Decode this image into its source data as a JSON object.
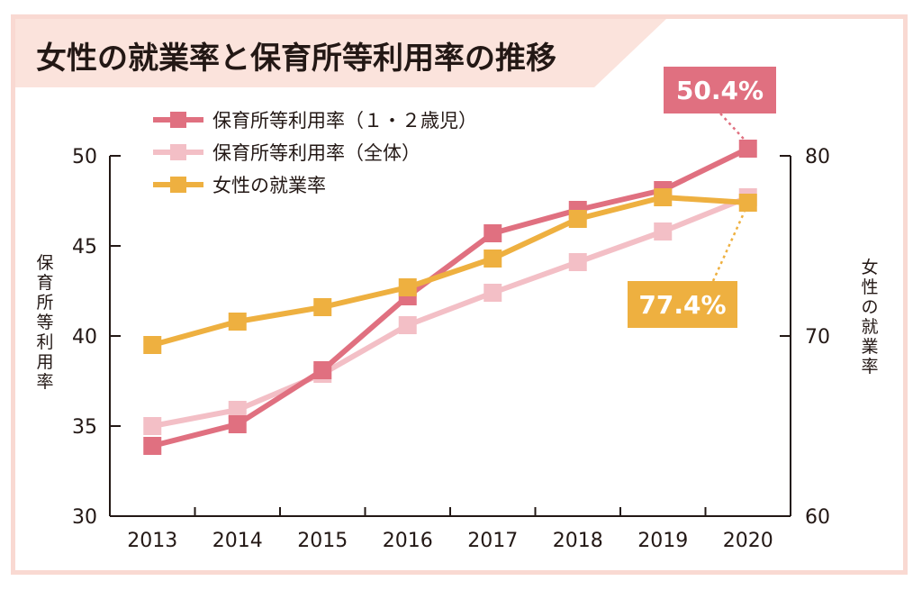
{
  "title": "女性の就業率と保育所等利用率の推移",
  "chart_data": {
    "type": "line",
    "categories": [
      "2013",
      "2014",
      "2015",
      "2016",
      "2017",
      "2018",
      "2019",
      "2020"
    ],
    "series": [
      {
        "name": "保育所等利用率（１・２歳児）",
        "axis": "left",
        "color": "#e07080",
        "values": [
          33.9,
          35.1,
          38.1,
          42.2,
          45.7,
          47.0,
          48.1,
          50.4
        ]
      },
      {
        "name": "保育所等利用率（全体）",
        "axis": "left",
        "color": "#f3bfc6",
        "values": [
          35.0,
          35.9,
          37.9,
          40.6,
          42.4,
          44.1,
          45.8,
          47.7
        ]
      },
      {
        "name": "女性の就業率",
        "axis": "right",
        "color": "#eeb040",
        "values": [
          69.5,
          70.8,
          71.6,
          72.7,
          74.3,
          76.5,
          77.7,
          77.4
        ]
      }
    ],
    "y_left": {
      "label": "保育所等利用率",
      "lim": [
        30,
        50
      ],
      "ticks": [
        "30",
        "35",
        "40",
        "45",
        "50"
      ]
    },
    "y_right": {
      "label": "女性の就業率",
      "lim": [
        60,
        80
      ],
      "ticks": [
        "60",
        "70",
        "80"
      ]
    },
    "annotations": [
      {
        "text": "50.4%",
        "series": 0,
        "index": 7,
        "color": "#e07080"
      },
      {
        "text": "77.4%",
        "series": 2,
        "index": 7,
        "color": "#eeb040"
      }
    ],
    "legend": "top-left",
    "grid": false
  }
}
